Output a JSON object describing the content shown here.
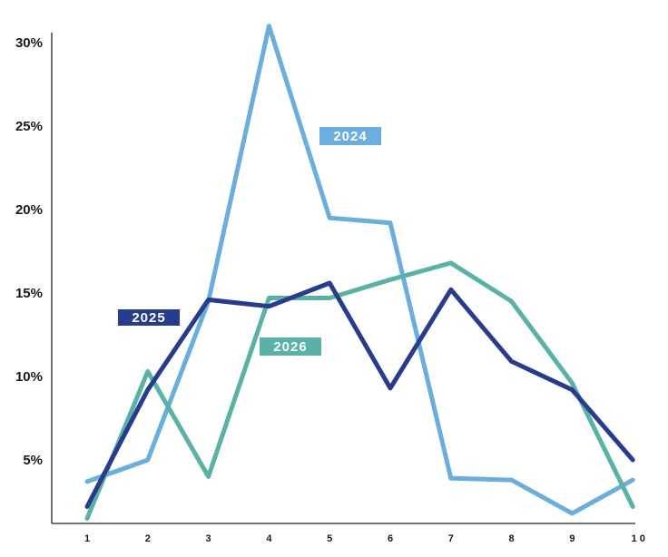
{
  "chart_data": {
    "type": "line",
    "title": "",
    "xlabel": "",
    "ylabel": "",
    "x": [
      "1",
      "2",
      "3",
      "4",
      "5",
      "6",
      "7",
      "8",
      "9",
      "1 0"
    ],
    "y_ticks": [
      "5%",
      "10%",
      "15%",
      "20%",
      "25%",
      "30%"
    ],
    "y_tick_values": [
      5,
      10,
      15,
      20,
      25,
      30
    ],
    "ylim": [
      0,
      30
    ],
    "grid": false,
    "series": [
      {
        "name": "2024",
        "color": "#6aaedd",
        "values": [
          3.7,
          5.0,
          14.5,
          31.0,
          19.5,
          19.2,
          3.9,
          3.8,
          1.8,
          3.8
        ]
      },
      {
        "name": "2026",
        "color": "#5ab1a6",
        "values": [
          1.5,
          10.3,
          4.0,
          14.7,
          14.7,
          15.8,
          16.8,
          14.5,
          9.6,
          2.2
        ]
      },
      {
        "name": "2025",
        "color": "#283c8d",
        "values": [
          2.2,
          9.2,
          14.6,
          14.2,
          15.6,
          9.3,
          15.2,
          10.9,
          9.2,
          5.0
        ]
      }
    ]
  }
}
